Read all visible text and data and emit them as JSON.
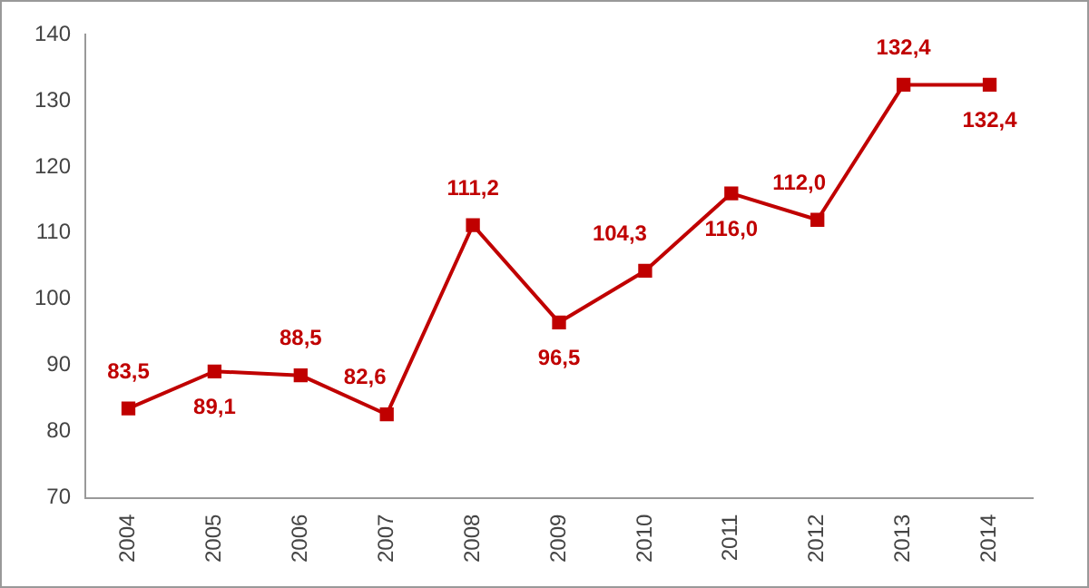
{
  "chart_data": {
    "type": "line",
    "categories": [
      "2004",
      "2005",
      "2006",
      "2007",
      "2008",
      "2009",
      "2010",
      "2011",
      "2012",
      "2013",
      "2014"
    ],
    "series": [
      {
        "color": "#c00000",
        "values": [
          83.5,
          89.1,
          88.5,
          82.6,
          111.2,
          96.5,
          104.3,
          116.0,
          112.0,
          132.4,
          132.4
        ],
        "value_labels": [
          "83,5",
          "89,1",
          "88,5",
          "82,6",
          "111,2",
          "96,5",
          "104,3",
          "116,0",
          "112,0",
          "132,4",
          "132,4"
        ]
      }
    ],
    "ylim": [
      70,
      140
    ],
    "yticks": [
      70,
      80,
      90,
      100,
      110,
      120,
      130,
      140
    ],
    "grid": false,
    "legend": false,
    "marker": "square",
    "line_style": "solid"
  }
}
